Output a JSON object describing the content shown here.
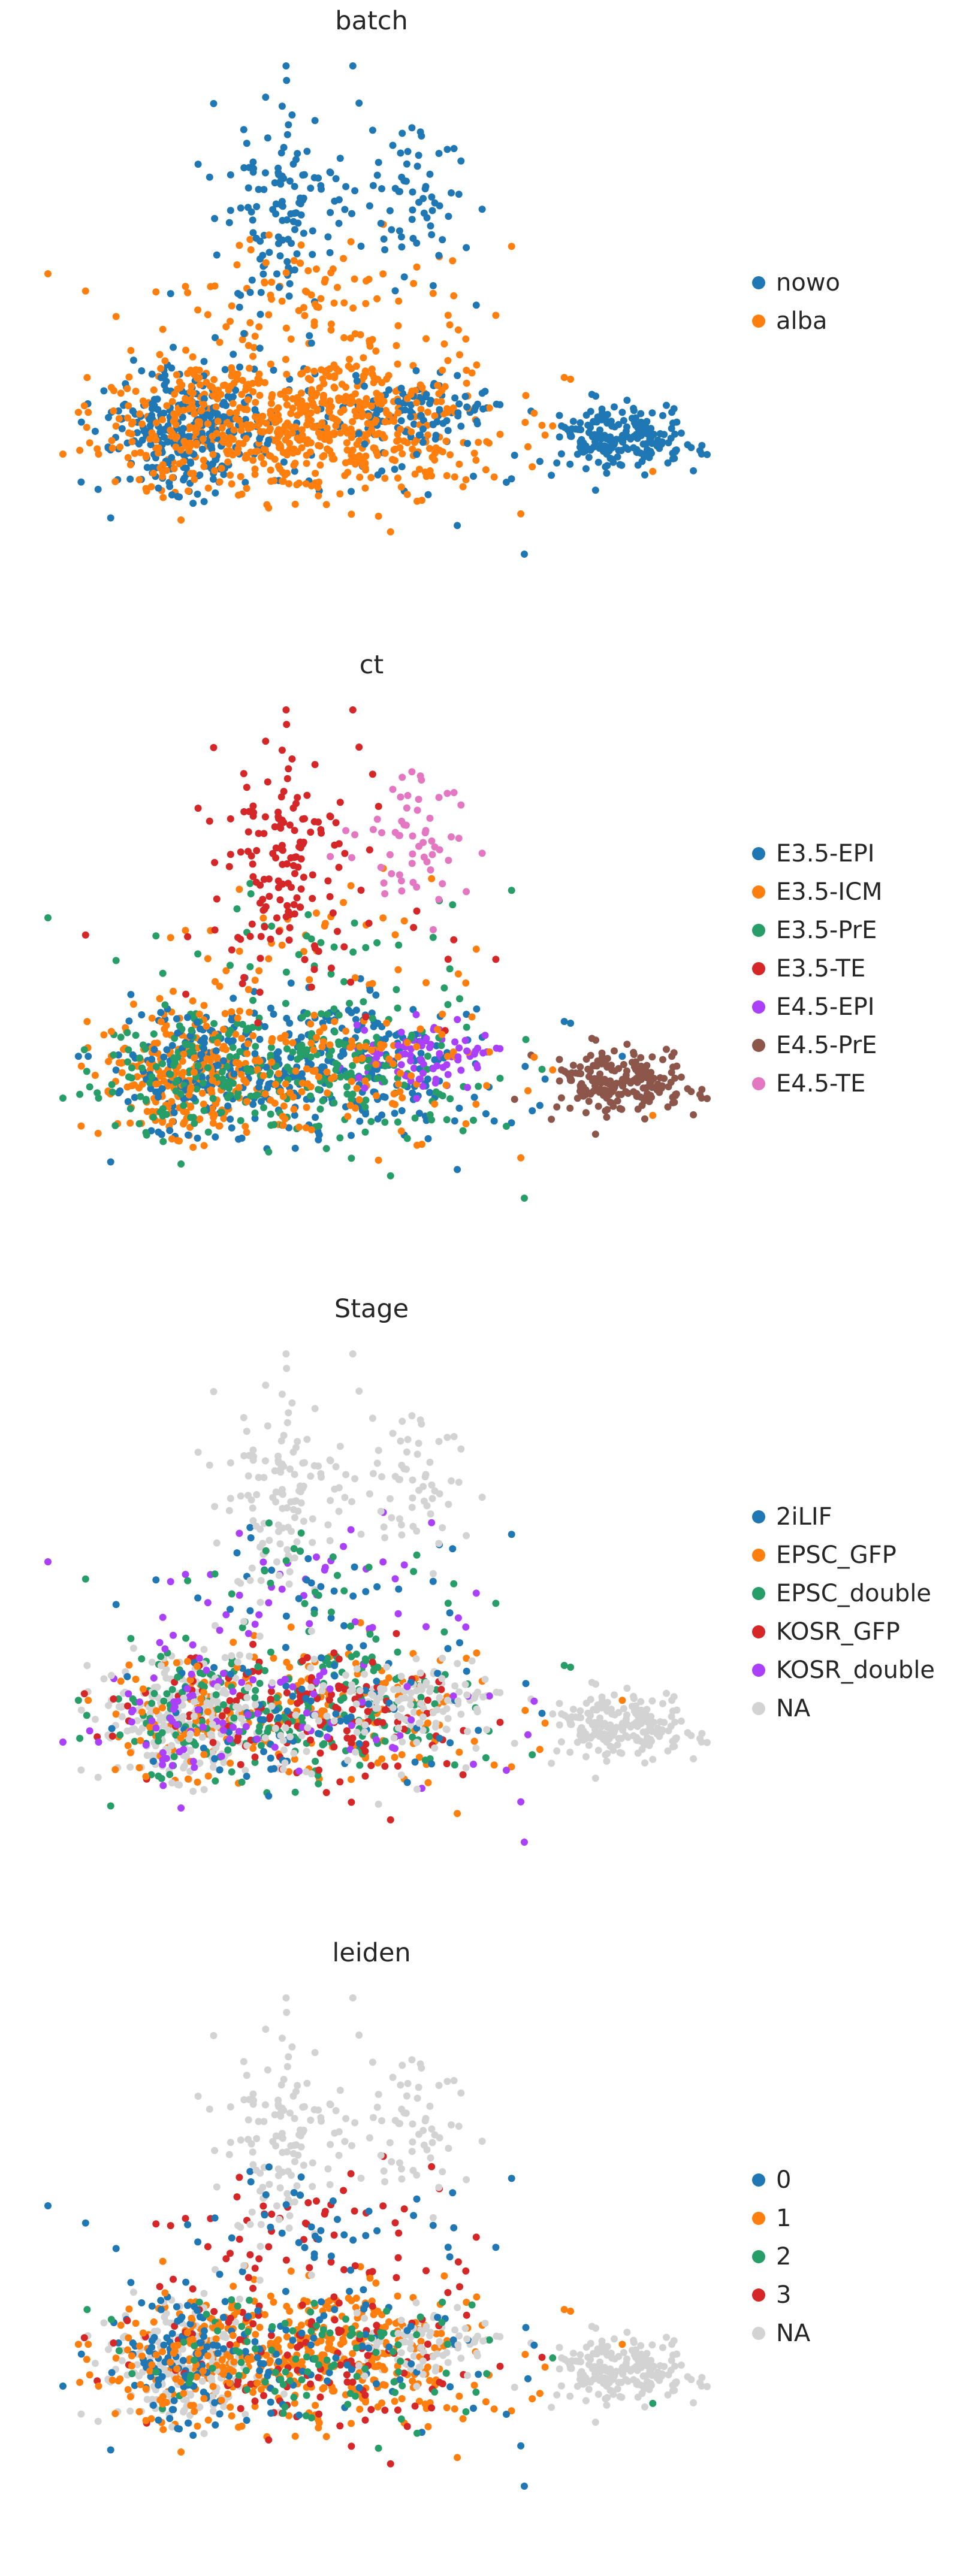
{
  "chart_data": [
    {
      "type": "scatter",
      "title": "batch",
      "xlabel": "",
      "ylabel": "",
      "grid": false,
      "legend_position": "right",
      "series": [
        {
          "name": "nowo",
          "color": "#1f77b4"
        },
        {
          "name": "alba",
          "color": "#ff7f0e"
        }
      ]
    },
    {
      "type": "scatter",
      "title": "ct",
      "xlabel": "",
      "ylabel": "",
      "grid": false,
      "legend_position": "right",
      "series": [
        {
          "name": "E3.5-EPI",
          "color": "#1f77b4"
        },
        {
          "name": "E3.5-ICM",
          "color": "#ff7f0e"
        },
        {
          "name": "E3.5-PrE",
          "color": "#279e68"
        },
        {
          "name": "E3.5-TE",
          "color": "#d62728"
        },
        {
          "name": "E4.5-EPI",
          "color": "#aa40fc"
        },
        {
          "name": "E4.5-PrE",
          "color": "#8c564b"
        },
        {
          "name": "E4.5-TE",
          "color": "#e377c2"
        }
      ]
    },
    {
      "type": "scatter",
      "title": "Stage",
      "xlabel": "",
      "ylabel": "",
      "grid": false,
      "legend_position": "right",
      "series": [
        {
          "name": "2iLIF",
          "color": "#1f77b4"
        },
        {
          "name": "EPSC_GFP",
          "color": "#ff7f0e"
        },
        {
          "name": "EPSC_double",
          "color": "#279e68"
        },
        {
          "name": "KOSR_GFP",
          "color": "#d62728"
        },
        {
          "name": "KOSR_double",
          "color": "#aa40fc"
        },
        {
          "name": "NA",
          "color": "#d3d3d3"
        }
      ]
    },
    {
      "type": "scatter",
      "title": "leiden",
      "xlabel": "",
      "ylabel": "",
      "grid": false,
      "legend_position": "right",
      "series": [
        {
          "name": "0",
          "color": "#1f77b4"
        },
        {
          "name": "1",
          "color": "#ff7f0e"
        },
        {
          "name": "2",
          "color": "#279e68"
        },
        {
          "name": "3",
          "color": "#d62728"
        },
        {
          "name": "NA",
          "color": "#d3d3d3"
        }
      ]
    }
  ]
}
